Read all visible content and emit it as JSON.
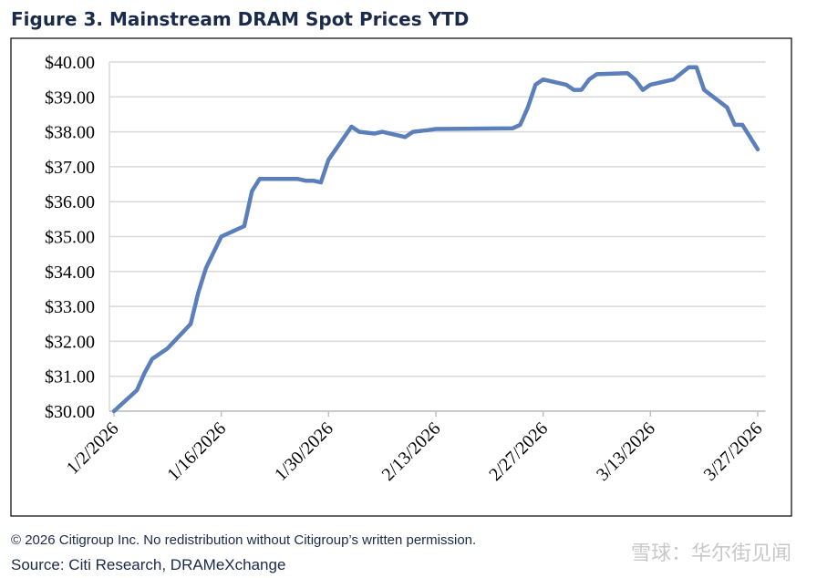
{
  "chart_data": {
    "type": "line",
    "title": "Figure 3. Mainstream DRAM Spot Prices YTD",
    "footnote": "© 2026 Citigroup Inc. No redistribution without Citigroup’s written permission.",
    "source": "Source: Citi Research, DRAMeXchange",
    "watermark": "雪球：华尔街见闻",
    "x": [
      "2026-01-02",
      "2026-01-05",
      "2026-01-06",
      "2026-01-07",
      "2026-01-09",
      "2026-01-12",
      "2026-01-13",
      "2026-01-14",
      "2026-01-16",
      "2026-01-19",
      "2026-01-20",
      "2026-01-21",
      "2026-01-26",
      "2026-01-27",
      "2026-01-28",
      "2026-01-29",
      "2026-01-30",
      "2026-02-02",
      "2026-02-03",
      "2026-02-05",
      "2026-02-06",
      "2026-02-09",
      "2026-02-10",
      "2026-02-12",
      "2026-02-13",
      "2026-02-23",
      "2026-02-24",
      "2026-02-25",
      "2026-02-26",
      "2026-02-27",
      "2026-03-02",
      "2026-03-03",
      "2026-03-04",
      "2026-03-05",
      "2026-03-06",
      "2026-03-10",
      "2026-03-11",
      "2026-03-12",
      "2026-03-13",
      "2026-03-16",
      "2026-03-18",
      "2026-03-19",
      "2026-03-20",
      "2026-03-23",
      "2026-03-24",
      "2026-03-25",
      "2026-03-27"
    ],
    "series": [
      {
        "name": "DRAM spot price",
        "color": "#5b7fbb",
        "values": [
          30.0,
          30.6,
          31.1,
          31.5,
          31.8,
          32.5,
          33.4,
          34.1,
          35.0,
          35.3,
          36.3,
          36.65,
          36.65,
          36.6,
          36.6,
          36.55,
          37.2,
          38.15,
          38.0,
          37.95,
          38.0,
          37.85,
          38.0,
          38.05,
          38.08,
          38.1,
          38.2,
          38.7,
          39.35,
          39.5,
          39.35,
          39.2,
          39.2,
          39.5,
          39.65,
          39.68,
          39.5,
          39.2,
          39.35,
          39.5,
          39.85,
          39.85,
          39.2,
          38.7,
          38.2,
          38.2,
          37.5
        ]
      }
    ],
    "xlim": [
      "2026-01-01",
      "2026-03-28"
    ],
    "xticks": [
      {
        "value": "2026-01-02",
        "label": "1/2/2026"
      },
      {
        "value": "2026-01-16",
        "label": "1/16/2026"
      },
      {
        "value": "2026-01-30",
        "label": "1/30/2026"
      },
      {
        "value": "2026-02-13",
        "label": "2/13/2026"
      },
      {
        "value": "2026-02-27",
        "label": "2/27/2026"
      },
      {
        "value": "2026-03-13",
        "label": "3/13/2026"
      },
      {
        "value": "2026-03-27",
        "label": "3/27/2026"
      }
    ],
    "ylim": [
      30,
      40
    ],
    "yticks": [
      {
        "value": 30,
        "label": "$30.00"
      },
      {
        "value": 31,
        "label": "$31.00"
      },
      {
        "value": 32,
        "label": "$32.00"
      },
      {
        "value": 33,
        "label": "$33.00"
      },
      {
        "value": 34,
        "label": "$34.00"
      },
      {
        "value": 35,
        "label": "$35.00"
      },
      {
        "value": 36,
        "label": "$36.00"
      },
      {
        "value": 37,
        "label": "$37.00"
      },
      {
        "value": 38,
        "label": "$38.00"
      },
      {
        "value": 39,
        "label": "$39.00"
      },
      {
        "value": 40,
        "label": "$40.00"
      }
    ],
    "grid": true
  }
}
